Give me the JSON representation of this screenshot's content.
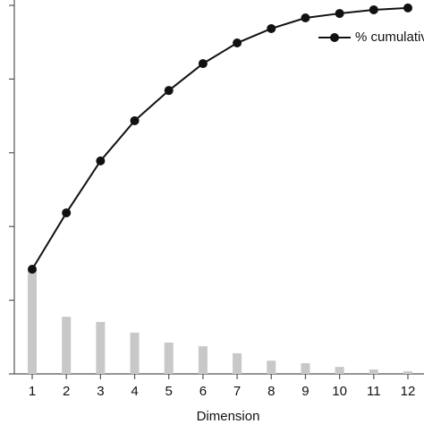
{
  "chart_data": {
    "type": "bar-line",
    "x_label": "Dimension",
    "categories": [
      "1",
      "2",
      "3",
      "4",
      "5",
      "6",
      "7",
      "8",
      "9",
      "10",
      "11",
      "12"
    ],
    "series": [
      {
        "type": "bar",
        "color": "#c8c8c8",
        "values": [
          28,
          15.5,
          14.1,
          11.2,
          8.5,
          7.5,
          5.6,
          3.6,
          2.9,
          1.9,
          1.2,
          0.7
        ]
      },
      {
        "type": "line",
        "name": "% cumulative",
        "color": "#111111",
        "values": [
          28.4,
          43.7,
          57.8,
          68.7,
          76.9,
          84.2,
          89.8,
          93.7,
          96.6,
          97.8,
          98.8,
          99.3
        ]
      }
    ],
    "ylim": [
      0,
      100
    ],
    "yticks": [
      0,
      20,
      40,
      60,
      80,
      100
    ],
    "legend": "top-right"
  }
}
